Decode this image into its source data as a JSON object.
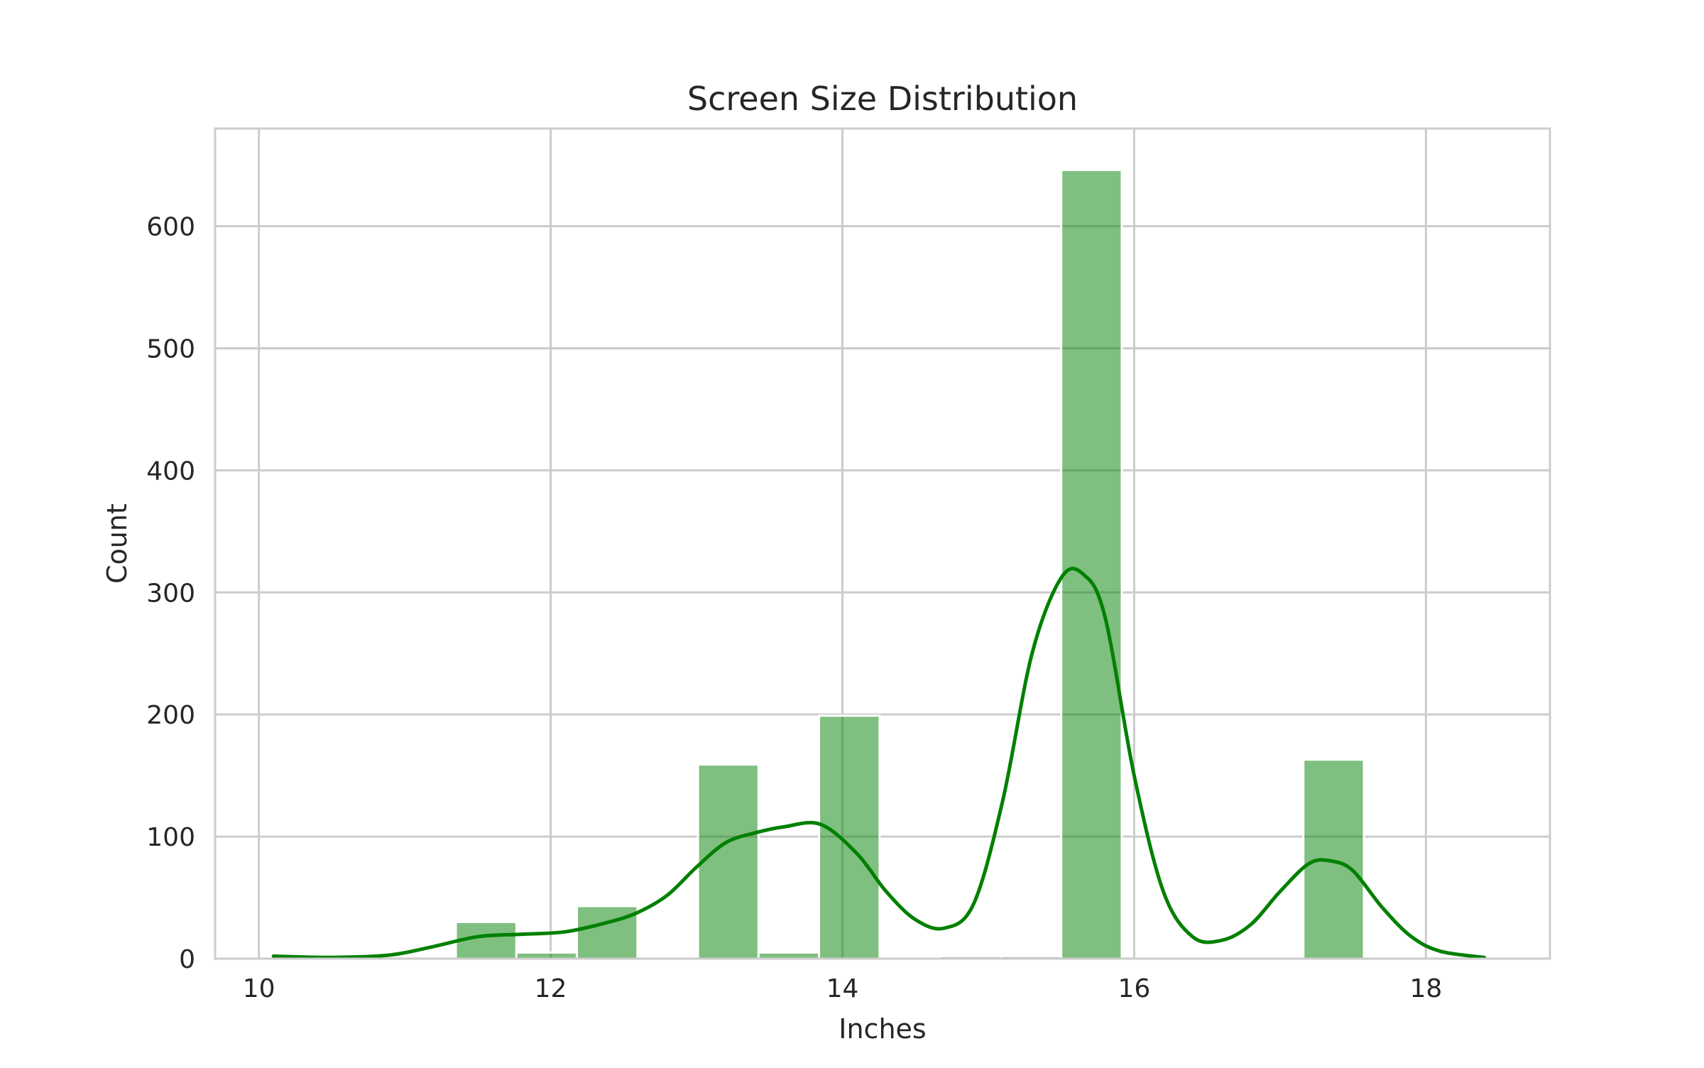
{
  "chart_data": {
    "type": "bar",
    "title": "Screen Size Distribution",
    "xlabel": "Inches",
    "ylabel": "Count",
    "xlim": [
      9.7,
      18.85
    ],
    "ylim": [
      0,
      680
    ],
    "x_ticks": [
      10,
      12,
      14,
      16,
      18
    ],
    "y_ticks": [
      0,
      100,
      200,
      300,
      400,
      500,
      600
    ],
    "grid": true,
    "legend": "none",
    "bar_color": "#008000",
    "line_color": "#008000",
    "histogram": {
      "bin_width": 0.415,
      "bins": [
        {
          "start": 11.35,
          "end": 11.765,
          "count": 30
        },
        {
          "start": 11.765,
          "end": 12.18,
          "count": 5
        },
        {
          "start": 12.18,
          "end": 12.595,
          "count": 43
        },
        {
          "start": 13.01,
          "end": 13.425,
          "count": 159
        },
        {
          "start": 13.425,
          "end": 13.84,
          "count": 5
        },
        {
          "start": 13.84,
          "end": 14.255,
          "count": 199
        },
        {
          "start": 14.67,
          "end": 15.085,
          "count": 2
        },
        {
          "start": 15.085,
          "end": 15.5,
          "count": 2
        },
        {
          "start": 15.5,
          "end": 15.915,
          "count": 646
        },
        {
          "start": 17.16,
          "end": 17.575,
          "count": 163
        }
      ]
    },
    "kde": {
      "x": [
        10.1,
        10.5,
        10.9,
        11.2,
        11.5,
        11.8,
        12.1,
        12.4,
        12.6,
        12.8,
        13.0,
        13.2,
        13.4,
        13.6,
        13.85,
        14.1,
        14.3,
        14.5,
        14.7,
        14.9,
        15.1,
        15.3,
        15.5,
        15.65,
        15.8,
        16.0,
        16.2,
        16.4,
        16.6,
        16.8,
        17.0,
        17.2,
        17.35,
        17.5,
        17.7,
        17.9,
        18.1,
        18.4
      ],
      "y": [
        2,
        1,
        3,
        10,
        18,
        20,
        22,
        30,
        38,
        52,
        75,
        95,
        103,
        108,
        110,
        86,
        55,
        32,
        25,
        45,
        130,
        250,
        312,
        315,
        280,
        150,
        55,
        18,
        15,
        28,
        55,
        78,
        80,
        72,
        42,
        18,
        6,
        1
      ]
    }
  }
}
